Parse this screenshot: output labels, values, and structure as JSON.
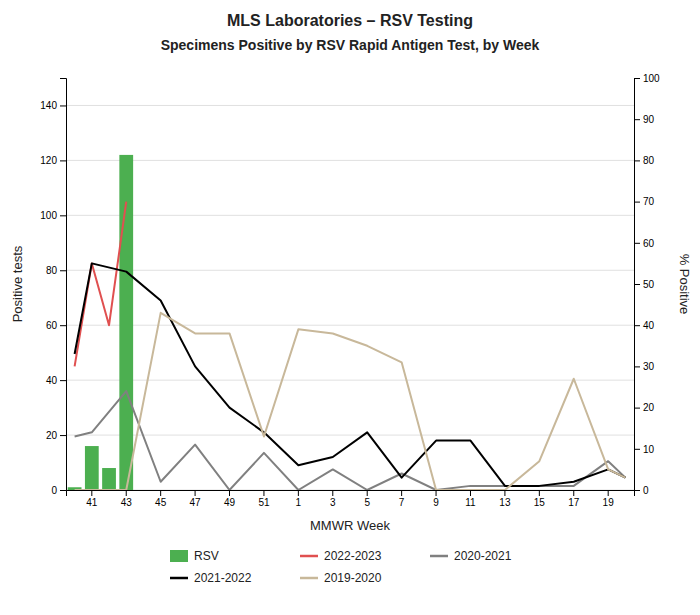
{
  "chart_data": {
    "type": "bar",
    "title": "MLS Laboratories – RSV Testing",
    "subtitle": "Specimens Positive by RSV Rapid Antigen Test, by Week",
    "x_label": "MMWR Week",
    "y_label": "Positive tests",
    "y2_label": "% Positive",
    "categories": [
      null,
      "41",
      null,
      "43",
      null,
      "45",
      null,
      "47",
      null,
      "49",
      null,
      "51",
      null,
      "1",
      null,
      "3",
      null,
      "5",
      null,
      "7",
      null,
      "9",
      null,
      "11",
      null,
      "13",
      null,
      "15",
      null,
      "17",
      null,
      "19",
      null
    ],
    "ylim": [
      0,
      150
    ],
    "yticks": [
      0,
      20,
      40,
      60,
      80,
      100,
      120,
      140
    ],
    "y2lim": [
      0,
      100
    ],
    "y2ticks": [
      0,
      10,
      20,
      30,
      40,
      50,
      60,
      70,
      80,
      90,
      100
    ],
    "grid": true,
    "legend": "bottom",
    "series": [
      {
        "name": "RSV",
        "type": "bar",
        "color": "#4CAF50",
        "values": [
          1,
          16,
          8,
          122,
          null,
          null,
          null,
          null,
          null,
          null,
          null,
          null,
          null,
          null,
          null,
          null,
          null,
          null,
          null,
          null,
          null,
          null,
          null,
          null,
          null,
          null,
          null,
          null,
          null,
          null,
          null,
          null,
          null
        ]
      },
      {
        "name": "2022-2023",
        "type": "line",
        "axis": "y2",
        "color": "#E05050",
        "values": [
          30,
          55,
          40,
          70,
          null,
          null,
          null,
          null,
          null,
          null,
          null,
          null,
          null,
          null,
          null,
          null,
          null,
          null,
          null,
          null,
          null,
          null,
          null,
          null,
          null,
          null,
          null,
          null,
          null,
          null,
          null,
          null,
          null
        ]
      },
      {
        "name": "2020-2021",
        "type": "line",
        "axis": "y2",
        "color": "#808080",
        "values": [
          13,
          14,
          null,
          24,
          null,
          2,
          null,
          11,
          null,
          0,
          null,
          9,
          null,
          0,
          null,
          5,
          null,
          0,
          null,
          4,
          null,
          0,
          null,
          1,
          null,
          1,
          null,
          1,
          null,
          1,
          null,
          7,
          3
        ]
      },
      {
        "name": "2021-2022",
        "type": "line",
        "axis": "y2",
        "color": "#000000",
        "values": [
          33,
          55,
          null,
          53,
          null,
          46,
          null,
          30,
          null,
          20,
          null,
          14,
          null,
          6,
          null,
          8,
          null,
          14,
          null,
          3,
          null,
          12,
          null,
          12,
          null,
          1,
          null,
          1,
          null,
          2,
          null,
          5,
          3
        ]
      },
      {
        "name": "2019-2020",
        "type": "line",
        "axis": "y2",
        "color": "#C8B89A",
        "values": [
          0,
          0,
          null,
          0,
          null,
          43,
          null,
          38,
          null,
          38,
          null,
          13,
          null,
          39,
          null,
          38,
          null,
          35,
          null,
          31,
          null,
          0,
          null,
          0,
          null,
          0,
          null,
          7,
          null,
          27,
          null,
          5,
          3
        ]
      }
    ]
  }
}
